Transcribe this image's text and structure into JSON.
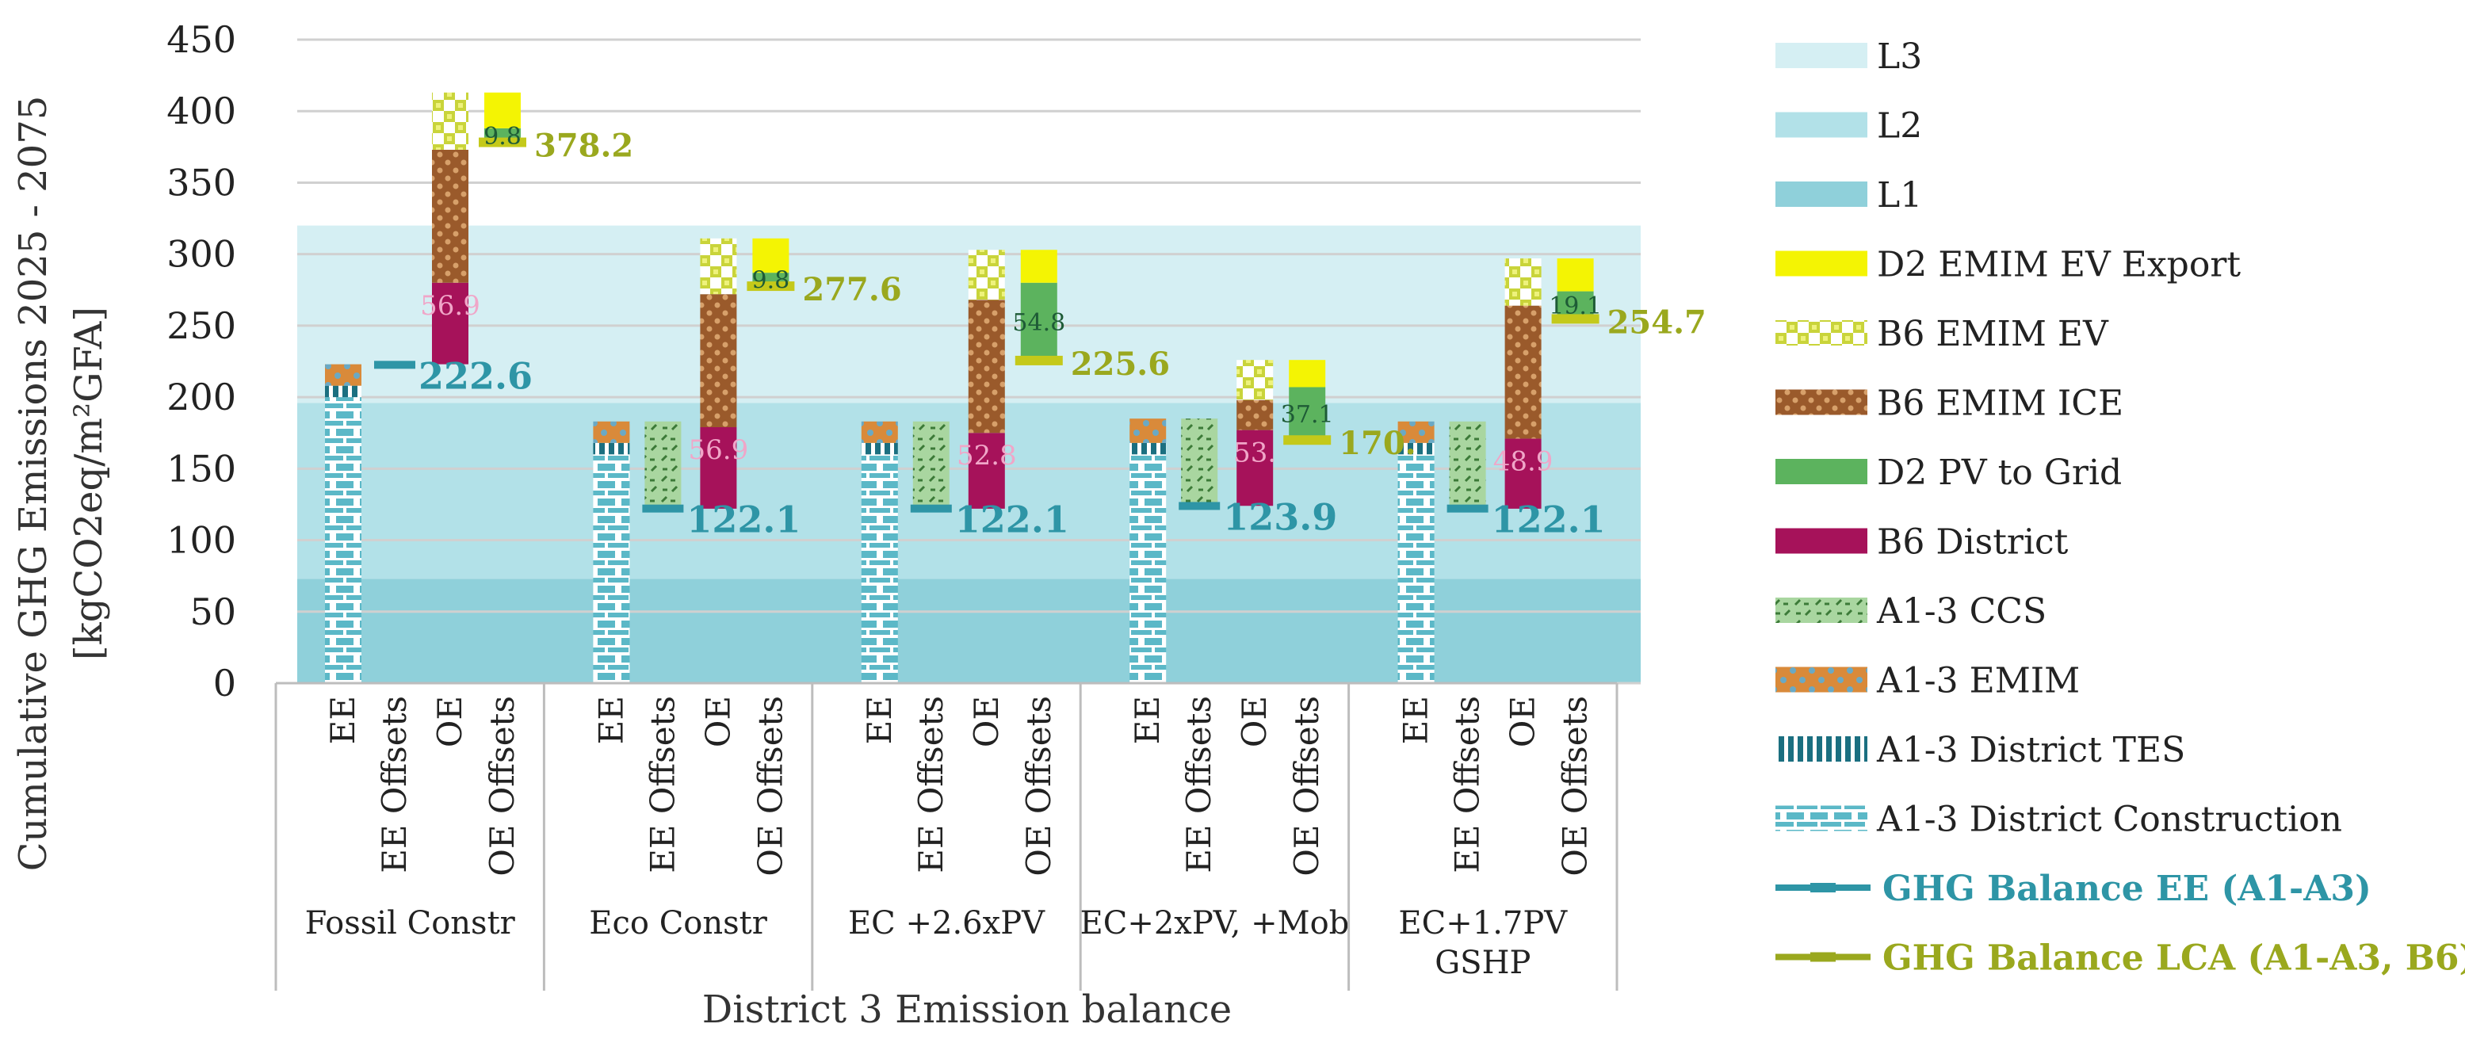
{
  "chart_data": {
    "type": "bar",
    "stacked": true,
    "ylabel": "Cumulative GHG Emissions 2025 - 2075",
    "ylabel_unit": "[kgCO2eq/m²GFA]",
    "xlabel": "District 3 Emission balance",
    "ylim": [
      0,
      450
    ],
    "yticks": [
      0,
      50,
      100,
      150,
      200,
      250,
      300,
      350,
      400,
      450
    ],
    "bar_categories": [
      "EE",
      "EE Offsets",
      "OE",
      "OE Offsets"
    ],
    "background_bands": [
      {
        "name": "L1",
        "from": 0,
        "to": 73,
        "color": "#8fd0da"
      },
      {
        "name": "L2",
        "from": 73,
        "to": 196,
        "color": "#b2e1e8"
      },
      {
        "name": "L3",
        "from": 196,
        "to": 320,
        "color": "#d5eff3"
      }
    ],
    "legend": [
      {
        "name": "L3",
        "color": "#d5eff3",
        "kind": "box"
      },
      {
        "name": "L2",
        "color": "#b2e1e8",
        "kind": "box"
      },
      {
        "name": "L1",
        "color": "#8fd0da",
        "kind": "box"
      },
      {
        "name": "D2 EMIM EV Export",
        "color": "#f4f403",
        "kind": "box"
      },
      {
        "name": "B6 EMIM EV",
        "color": "#d9e26a",
        "kind": "box",
        "pattern": "check"
      },
      {
        "name": "B6 EMIM ICE",
        "color": "#9a5a2b",
        "kind": "box",
        "pattern": "dots"
      },
      {
        "name": "D2 PV to Grid",
        "color": "#5cb35e",
        "kind": "box"
      },
      {
        "name": "B6 District",
        "color": "#a6125a",
        "kind": "box"
      },
      {
        "name": "A1-3 CCS",
        "color": "#a9d6a0",
        "kind": "box",
        "pattern": "dash"
      },
      {
        "name": "A1-3 EMIM",
        "color": "#d98a3a",
        "kind": "box",
        "pattern": "dots"
      },
      {
        "name": "A1-3 District TES",
        "color": "#1b6f80",
        "kind": "box",
        "pattern": "stripes"
      },
      {
        "name": "A1-3 District Construction",
        "color": "#5bb8c7",
        "kind": "box",
        "pattern": "brick"
      },
      {
        "name": "GHG Balance EE (A1-A3)",
        "color": "#2e95a6",
        "kind": "line"
      },
      {
        "name": "GHG Balance LCA (A1-A3, B6)",
        "color": "#9aa81e",
        "kind": "line"
      }
    ],
    "groups": [
      {
        "name": [
          "Fossil Constr"
        ],
        "bars": [
          {
            "cat": "EE",
            "segments": [
              {
                "series": "A1-3 District Construction",
                "from": 0,
                "to": 200
              },
              {
                "series": "A1-3 District TES",
                "from": 200,
                "to": 208
              },
              {
                "series": "A1-3 EMIM",
                "from": 208,
                "to": 223
              }
            ]
          },
          {
            "cat": "EE Offsets",
            "segments": []
          },
          {
            "cat": "OE",
            "segments": [
              {
                "series": "B6 District",
                "from": 223,
                "to": 280
              },
              {
                "series": "B6 EMIM ICE",
                "from": 280,
                "to": 373
              },
              {
                "series": "B6 EMIM EV",
                "from": 373,
                "to": 413
              }
            ]
          },
          {
            "cat": "OE Offsets",
            "segments": [
              {
                "series": "D2 PV to Grid",
                "from": 378,
                "to": 388
              },
              {
                "series": "D2 EMIM EV Export",
                "from": 388,
                "to": 413
              }
            ]
          }
        ],
        "ee_balance": 222.6,
        "ee_label": "222.6",
        "lca_balance": 378.2,
        "lca_label": "378.2",
        "pv_label": "9.8",
        "district_label": "56.9"
      },
      {
        "name": [
          "Eco Constr"
        ],
        "bars": [
          {
            "cat": "EE",
            "segments": [
              {
                "series": "A1-3 District Construction",
                "from": 0,
                "to": 160
              },
              {
                "series": "A1-3 District TES",
                "from": 160,
                "to": 168
              },
              {
                "series": "A1-3 EMIM",
                "from": 168,
                "to": 183
              }
            ]
          },
          {
            "cat": "EE Offsets",
            "segments": [
              {
                "series": "A1-3 CCS",
                "from": 122,
                "to": 183
              }
            ]
          },
          {
            "cat": "OE",
            "segments": [
              {
                "series": "B6 District",
                "from": 122,
                "to": 179
              },
              {
                "series": "B6 EMIM ICE",
                "from": 179,
                "to": 272
              },
              {
                "series": "B6 EMIM EV",
                "from": 272,
                "to": 311
              }
            ]
          },
          {
            "cat": "OE Offsets",
            "segments": [
              {
                "series": "D2 PV to Grid",
                "from": 277.6,
                "to": 287
              },
              {
                "series": "D2 EMIM EV Export",
                "from": 287,
                "to": 311
              }
            ]
          }
        ],
        "ee_balance": 122.1,
        "ee_label": "122.1",
        "lca_balance": 277.6,
        "lca_label": "277.6",
        "pv_label": "9.8",
        "district_label": "56.9"
      },
      {
        "name": [
          "EC +2.6xPV"
        ],
        "bars": [
          {
            "cat": "EE",
            "segments": [
              {
                "series": "A1-3 District Construction",
                "from": 0,
                "to": 160
              },
              {
                "series": "A1-3 District TES",
                "from": 160,
                "to": 168
              },
              {
                "series": "A1-3 EMIM",
                "from": 168,
                "to": 183
              }
            ]
          },
          {
            "cat": "EE Offsets",
            "segments": [
              {
                "series": "A1-3 CCS",
                "from": 122,
                "to": 183
              }
            ]
          },
          {
            "cat": "OE",
            "segments": [
              {
                "series": "B6 District",
                "from": 122,
                "to": 175
              },
              {
                "series": "B6 EMIM ICE",
                "from": 175,
                "to": 268
              },
              {
                "series": "B6 EMIM EV",
                "from": 268,
                "to": 303
              }
            ]
          },
          {
            "cat": "OE Offsets",
            "segments": [
              {
                "series": "D2 PV to Grid",
                "from": 225.6,
                "to": 280
              },
              {
                "series": "D2 EMIM EV Export",
                "from": 280,
                "to": 303
              }
            ]
          }
        ],
        "ee_balance": 122.1,
        "ee_label": "122.1",
        "lca_balance": 225.6,
        "lca_label": "225.6",
        "pv_label": "54.8",
        "district_label": "52.8"
      },
      {
        "name": [
          "EC+2xPV, +Mob"
        ],
        "bars": [
          {
            "cat": "EE",
            "segments": [
              {
                "series": "A1-3 District Construction",
                "from": 0,
                "to": 160
              },
              {
                "series": "A1-3 District TES",
                "from": 160,
                "to": 168
              },
              {
                "series": "A1-3 EMIM",
                "from": 168,
                "to": 185
              }
            ]
          },
          {
            "cat": "EE Offsets",
            "segments": [
              {
                "series": "A1-3 CCS",
                "from": 124,
                "to": 185
              }
            ]
          },
          {
            "cat": "OE",
            "segments": [
              {
                "series": "B6 District",
                "from": 124,
                "to": 177
              },
              {
                "series": "B6 EMIM ICE",
                "from": 177,
                "to": 198
              },
              {
                "series": "B6 EMIM EV",
                "from": 198,
                "to": 226
              }
            ]
          },
          {
            "cat": "OE Offsets",
            "segments": [
              {
                "series": "D2 PV to Grid",
                "from": 170,
                "to": 207
              },
              {
                "series": "D2 EMIM EV Export",
                "from": 207,
                "to": 226
              }
            ]
          }
        ],
        "ee_balance": 123.9,
        "ee_label": "123.9",
        "lca_balance": 170,
        "lca_label": "170.",
        "pv_label": "37.1",
        "district_label": "53."
      },
      {
        "name": [
          "EC+1.7PV",
          "GSHP"
        ],
        "bars": [
          {
            "cat": "EE",
            "segments": [
              {
                "series": "A1-3 District Construction",
                "from": 0,
                "to": 160
              },
              {
                "series": "A1-3 District TES",
                "from": 160,
                "to": 168
              },
              {
                "series": "A1-3 EMIM",
                "from": 168,
                "to": 183
              }
            ]
          },
          {
            "cat": "EE Offsets",
            "segments": [
              {
                "series": "A1-3 CCS",
                "from": 122,
                "to": 183
              }
            ]
          },
          {
            "cat": "OE",
            "segments": [
              {
                "series": "B6 District",
                "from": 122,
                "to": 171
              },
              {
                "series": "B6 EMIM ICE",
                "from": 171,
                "to": 264
              },
              {
                "series": "B6 EMIM EV",
                "from": 264,
                "to": 297
              }
            ]
          },
          {
            "cat": "OE Offsets",
            "segments": [
              {
                "series": "D2 PV to Grid",
                "from": 254.7,
                "to": 274
              },
              {
                "series": "D2 EMIM EV Export",
                "from": 274,
                "to": 297
              }
            ]
          }
        ],
        "ee_balance": 122.1,
        "ee_label": "122.1",
        "lca_balance": 254.7,
        "lca_label": "254.7",
        "pv_label": "19.1",
        "district_label": "48.9"
      }
    ]
  }
}
